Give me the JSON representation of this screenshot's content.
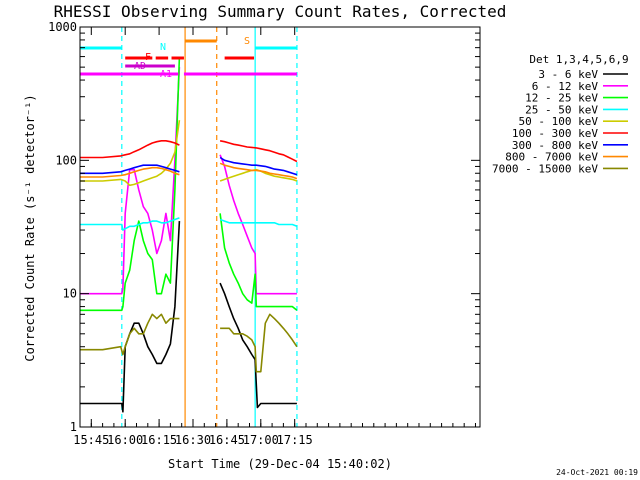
{
  "chart_data": {
    "type": "line",
    "title": "RHESSI Observing Summary Count Rates, Corrected",
    "xlabel": "Start Time (29-Dec-04 15:40:02)",
    "ylabel": "Corrected Count Rate (s⁻¹ detector⁻¹)",
    "yscale": "log",
    "ylim": [
      1,
      1000
    ],
    "xlim_minutes": [
      40,
      217
    ],
    "x_ticks": [
      {
        "m": 45,
        "label": "15:45"
      },
      {
        "m": 60,
        "label": "16:00"
      },
      {
        "m": 75,
        "label": "16:15"
      },
      {
        "m": 90,
        "label": "16:30"
      },
      {
        "m": 105,
        "label": "16:45"
      },
      {
        "m": 120,
        "label": "17:00"
      },
      {
        "m": 135,
        "label": "17:15"
      }
    ],
    "y_ticks": [
      {
        "v": 1,
        "label": "1"
      },
      {
        "v": 10,
        "label": "10"
      },
      {
        "v": 100,
        "label": "100"
      },
      {
        "v": 1000,
        "label": "1000"
      }
    ],
    "legend_title": "Det 1,3,4,5,6,9",
    "legend_position": "right",
    "timestamp": "24-Oct-2021 00:19",
    "series": [
      {
        "name": "3 - 6 keV",
        "color": "#000000",
        "x": [
          40,
          58.5,
          59,
          60,
          62,
          64,
          66,
          68,
          70,
          72,
          74,
          76,
          78,
          80,
          82,
          84,
          102,
          104,
          106,
          108,
          110,
          112,
          114,
          116,
          117.5,
          118.5,
          120,
          122,
          124,
          126,
          128,
          130,
          132,
          134,
          136
        ],
        "y": [
          1.5,
          1.5,
          1.3,
          4,
          5,
          6,
          6,
          5,
          4,
          3.5,
          3,
          3,
          3.5,
          4.2,
          8,
          35,
          12,
          10,
          8,
          6.5,
          5.5,
          4.5,
          4,
          3.5,
          3.2,
          1.4,
          1.5,
          1.5,
          1.5,
          1.5,
          1.5,
          1.5,
          1.5,
          1.5,
          1.5
        ]
      },
      {
        "name": "6 - 12 keV",
        "color": "#ff00ff",
        "x": [
          40,
          58.5,
          59,
          60,
          62,
          64,
          66,
          68,
          70,
          72,
          74,
          76,
          78,
          80,
          82,
          84,
          102,
          104,
          106,
          108,
          110,
          112,
          114,
          116,
          117.5,
          118,
          120,
          122,
          124,
          126,
          128,
          130,
          132,
          134,
          136
        ],
        "y": [
          10,
          10,
          11,
          40,
          85,
          85,
          60,
          45,
          40,
          30,
          20,
          25,
          40,
          25,
          100,
          500,
          110,
          90,
          65,
          50,
          40,
          33,
          27,
          22,
          20,
          10,
          10,
          10,
          10,
          10,
          10,
          10,
          10,
          10,
          10
        ]
      },
      {
        "name": "12 - 25 keV",
        "color": "#00ff00",
        "x": [
          40,
          58.5,
          59,
          60,
          62,
          64,
          66,
          68,
          70,
          72,
          74,
          76,
          78,
          80,
          82,
          84,
          102,
          104,
          106,
          108,
          110,
          112,
          114,
          116,
          117.5,
          118,
          120,
          122,
          124,
          126,
          128,
          130,
          132,
          134,
          136
        ],
        "y": [
          7.5,
          7.5,
          8,
          12,
          15,
          25,
          35,
          25,
          20,
          18,
          10,
          10,
          14,
          12,
          60,
          600,
          40,
          22,
          17,
          14,
          12,
          10,
          9,
          8.5,
          14,
          8,
          8,
          8,
          8,
          8,
          8,
          8,
          8,
          8,
          7.5
        ]
      },
      {
        "name": "25 - 50 keV",
        "color": "#00ffff",
        "x": [
          40,
          58.5,
          59,
          62,
          64,
          66,
          68,
          70,
          72,
          74,
          76,
          78,
          80,
          82,
          84,
          102,
          104,
          106,
          108,
          110,
          112,
          114,
          116,
          118,
          120,
          122,
          124,
          126,
          128,
          130,
          132,
          134,
          136
        ],
        "y": [
          33,
          33,
          30,
          32,
          32,
          33,
          34,
          34,
          35,
          35,
          34,
          34,
          35,
          36,
          37,
          36,
          35,
          34,
          34,
          34,
          34,
          34,
          34,
          34,
          34,
          34,
          34,
          34,
          33,
          33,
          33,
          33,
          32
        ]
      },
      {
        "name": "50 - 100 keV",
        "color": "#cccc00",
        "x": [
          40,
          50,
          58,
          60,
          62,
          64,
          66,
          68,
          70,
          72,
          74,
          76,
          78,
          80,
          82,
          84,
          102,
          104,
          106,
          108,
          110,
          112,
          114,
          116,
          118,
          120,
          122,
          124,
          126,
          128,
          130,
          132,
          134,
          136
        ],
        "y": [
          70,
          70,
          72,
          70,
          65,
          66,
          68,
          70,
          72,
          74,
          76,
          80,
          86,
          95,
          115,
          200,
          70,
          72,
          74,
          76,
          78,
          80,
          82,
          84,
          85,
          83,
          80,
          78,
          76,
          75,
          74,
          73,
          72,
          70
        ]
      },
      {
        "name": "100 - 300 keV",
        "color": "#ff0000",
        "x": [
          40,
          50,
          58,
          60,
          62,
          64,
          66,
          68,
          70,
          72,
          74,
          76,
          78,
          80,
          82,
          84,
          102,
          104,
          106,
          108,
          110,
          112,
          114,
          116,
          118,
          120,
          122,
          124,
          126,
          128,
          130,
          132,
          134,
          136
        ],
        "y": [
          105,
          105,
          108,
          110,
          112,
          116,
          120,
          125,
          130,
          135,
          138,
          140,
          140,
          138,
          135,
          130,
          140,
          138,
          135,
          132,
          130,
          128,
          126,
          125,
          124,
          122,
          120,
          118,
          115,
          112,
          110,
          106,
          102,
          98
        ]
      },
      {
        "name": "300 - 800 keV",
        "color": "#0000ff",
        "x": [
          40,
          50,
          58,
          60,
          62,
          64,
          66,
          68,
          70,
          72,
          74,
          76,
          78,
          80,
          82,
          84,
          102,
          104,
          106,
          108,
          110,
          112,
          114,
          116,
          118,
          120,
          122,
          124,
          126,
          128,
          130,
          132,
          134,
          136
        ],
        "y": [
          80,
          80,
          82,
          84,
          86,
          88,
          90,
          92,
          92,
          92,
          92,
          90,
          88,
          86,
          84,
          82,
          105,
          100,
          98,
          96,
          95,
          94,
          93,
          92,
          92,
          91,
          90,
          88,
          86,
          85,
          84,
          82,
          80,
          78
        ]
      },
      {
        "name": "800 - 7000 keV",
        "color": "#ff8800",
        "x": [
          40,
          50,
          58,
          60,
          62,
          64,
          66,
          68,
          70,
          72,
          74,
          76,
          78,
          80,
          82,
          84,
          102,
          104,
          106,
          108,
          110,
          112,
          114,
          116,
          118,
          120,
          122,
          124,
          126,
          128,
          130,
          132,
          134,
          136
        ],
        "y": [
          75,
          75,
          77,
          78,
          80,
          82,
          84,
          86,
          87,
          88,
          88,
          87,
          85,
          83,
          80,
          78,
          95,
          92,
          90,
          88,
          87,
          86,
          85,
          84,
          84,
          83,
          82,
          80,
          79,
          78,
          77,
          76,
          75,
          73
        ]
      },
      {
        "name": "7000 - 15000 keV",
        "color": "#888800",
        "x": [
          40,
          50,
          58,
          59,
          60,
          62,
          64,
          66,
          68,
          70,
          72,
          74,
          76,
          78,
          80,
          82,
          84,
          102,
          104,
          106,
          108,
          110,
          112,
          114,
          116,
          117.5,
          118,
          120,
          122,
          124,
          126,
          128,
          130,
          132,
          134,
          136
        ],
        "y": [
          3.8,
          3.8,
          4,
          3.5,
          4,
          5,
          5.5,
          5,
          5,
          6,
          7,
          6.5,
          7,
          6,
          6.5,
          6.5,
          6.5,
          5.5,
          5.5,
          5.5,
          5,
          5,
          5,
          4.8,
          4.5,
          4,
          2.6,
          2.6,
          6,
          7,
          6.5,
          6,
          5.5,
          5,
          4.5,
          4
        ]
      }
    ],
    "annotations": {
      "cyan_bar": {
        "label": "N",
        "segments": [
          [
            40,
            58.5
          ],
          [
            117.5,
            136
          ]
        ]
      },
      "red_bar": {
        "label": "F",
        "segments": [
          [
            60,
            72
          ],
          [
            73.5,
            79
          ],
          [
            80.5,
            86
          ],
          [
            104,
            117
          ]
        ]
      },
      "orange_bar": {
        "label": "S",
        "segments": [
          [
            86.5,
            100.5
          ]
        ]
      },
      "magenta_bar_1": {
        "label": "AD",
        "segments": [
          [
            60,
            82
          ]
        ]
      },
      "magenta_bar_2": {
        "label": "A1",
        "segments": [
          [
            40,
            83.5
          ],
          [
            86,
            136
          ]
        ]
      },
      "vlines": [
        {
          "m": 58.5,
          "color": "#00ffff",
          "style": "dashed"
        },
        {
          "m": 86.5,
          "color": "#ff8800",
          "style": "solid"
        },
        {
          "m": 100.5,
          "color": "#ff8800",
          "style": "dashed"
        },
        {
          "m": 117.5,
          "color": "#00ffff",
          "style": "solid"
        },
        {
          "m": 136,
          "color": "#00ffff",
          "style": "dashed"
        }
      ]
    }
  }
}
